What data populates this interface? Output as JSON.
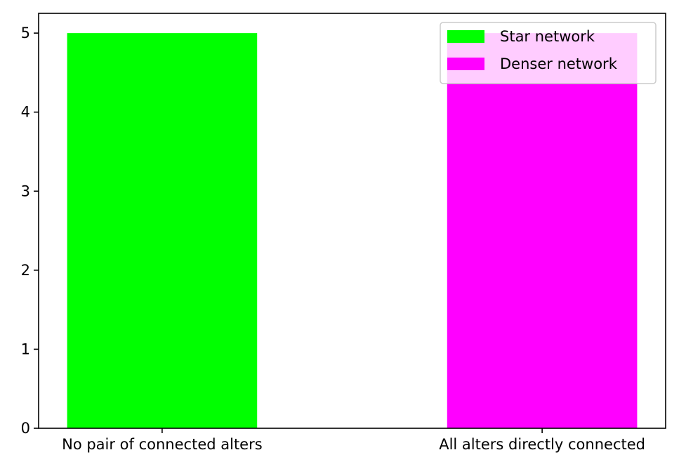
{
  "chart_data": {
    "type": "bar",
    "title": "",
    "xlabel": "",
    "ylabel": "",
    "categories": [
      "No pair of connected alters",
      "All alters directly connected"
    ],
    "series": [
      {
        "name": "Star network",
        "color": "#00ff00",
        "values": [
          5,
          null
        ]
      },
      {
        "name": "Denser network",
        "color": "#ff00ff",
        "values": [
          null,
          5
        ]
      }
    ],
    "ylim": [
      0,
      5.25
    ],
    "yticks": [
      0,
      1,
      2,
      3,
      4,
      5
    ],
    "ytick_labels": [
      "0",
      "1",
      "2",
      "3",
      "4",
      "5"
    ],
    "grid": false,
    "legend_position": "top-right"
  }
}
